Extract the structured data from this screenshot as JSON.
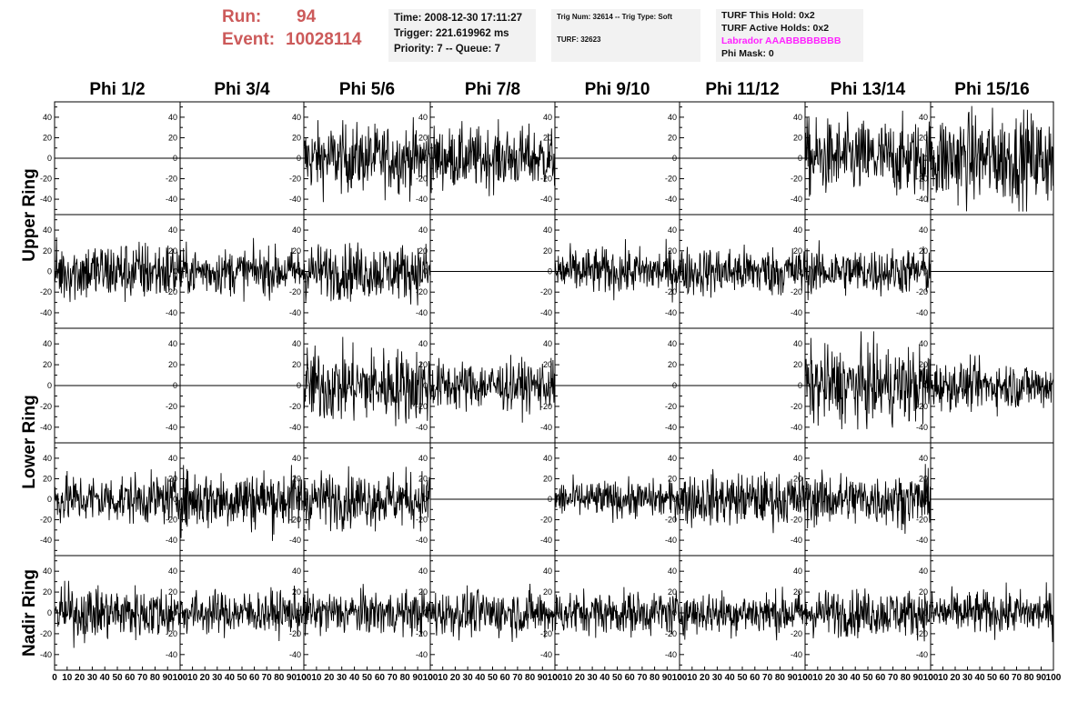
{
  "header": {
    "run_label": "Run:",
    "run_value": "94",
    "event_label": "Event:",
    "event_value": "10028114"
  },
  "time_box": {
    "time": "Time: 2008-12-30 17:11:27",
    "trigger": "Trigger: 221.619962 ms",
    "priority": "Priority: 7 -- Queue: 7"
  },
  "trig_box": {
    "trig_line": "Trig Num: 32614 -- Trig Type: Soft",
    "turf_line": "TURF: 32623"
  },
  "turf_box": {
    "this_hold": "TURF This Hold: 0x2",
    "active_holds": "TURF Active Holds: 0x2",
    "labrador": "Labrador AAABBBBBBBB",
    "phi_mask": "Phi Mask: 0",
    "labrador_color": "#ff22ff"
  },
  "chart_data": {
    "type": "line",
    "columns": [
      "Phi 1/2",
      "Phi 3/4",
      "Phi 5/6",
      "Phi 7/8",
      "Phi 9/10",
      "Phi 11/12",
      "Phi 13/14",
      "Phi 15/16"
    ],
    "ring_labels": [
      {
        "label": "Upper Ring",
        "rows": [
          0,
          1
        ]
      },
      {
        "label": "Lower Ring",
        "rows": [
          2,
          3
        ]
      },
      {
        "label": "Nadir Ring",
        "rows": [
          4
        ]
      }
    ],
    "ylim": [
      -55,
      55
    ],
    "xlim": [
      0,
      100
    ],
    "y_ticks": [
      -40,
      -20,
      0,
      20,
      40
    ],
    "x_ticks": [
      0,
      10,
      20,
      30,
      40,
      50,
      60,
      70,
      80,
      90,
      100
    ],
    "x_tick_labels": [
      "0",
      "10",
      "20",
      "30",
      "40",
      "50",
      "60",
      "70",
      "80",
      "90",
      "100"
    ],
    "y_tick_labels": [
      "-40",
      "-20",
      "0",
      "20",
      "40"
    ],
    "last_col_x_tick_labels": [
      "0",
      "10",
      "20",
      "30",
      "40",
      "50",
      "60",
      "70",
      "80",
      "90",
      "100"
    ],
    "line_color": "#000000",
    "traces": [
      [
        0,
        0,
        22,
        20,
        0,
        0,
        25,
        30
      ],
      [
        20,
        15,
        18,
        0,
        15,
        16,
        15,
        0
      ],
      [
        0,
        0,
        24,
        16,
        0,
        0,
        25,
        15
      ],
      [
        16,
        20,
        18,
        0,
        12,
        17,
        17,
        0
      ],
      [
        17,
        14,
        14,
        15,
        14,
        14,
        15,
        14
      ]
    ]
  }
}
